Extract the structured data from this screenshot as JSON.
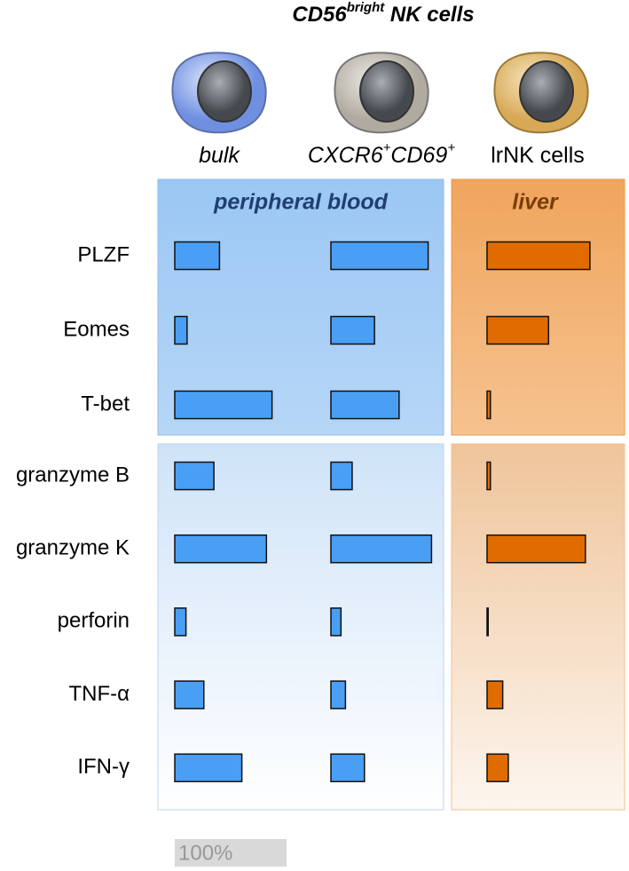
{
  "chart_data": {
    "type": "bar",
    "title": [
      "CD56",
      "bright",
      " NK cells"
    ],
    "regions": [
      "peripheral blood",
      "liver"
    ],
    "categories": [
      "PLZF",
      "Eomes",
      "T-bet",
      "granzyme B",
      "granzyme K",
      "perforin",
      "TNF-α",
      "IFN-γ"
    ],
    "series": [
      {
        "name": [
          "bulk"
        ],
        "color": "#4a9ff5",
        "values": [
          40,
          11,
          87,
          35,
          82,
          10,
          26,
          60
        ]
      },
      {
        "name": [
          "CXCR6",
          "+",
          "CD69",
          "+"
        ],
        "color": "#4a9ff5",
        "values": [
          87,
          39,
          61,
          19,
          90,
          9,
          13,
          30
        ]
      },
      {
        "name": [
          "lrNK cells"
        ],
        "color": "#e06c00",
        "values": [
          92,
          55,
          3,
          3,
          88,
          1,
          14,
          19
        ]
      }
    ],
    "scale": {
      "value": 100,
      "label": "100%"
    }
  }
}
